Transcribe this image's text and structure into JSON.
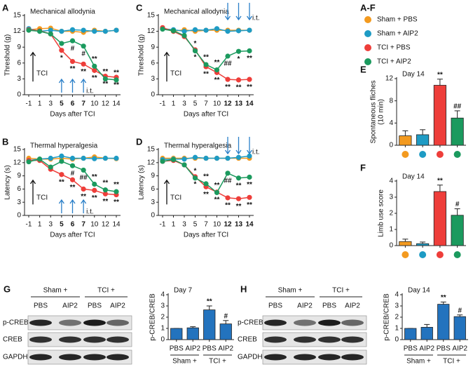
{
  "chart_data": [
    {
      "type": "line",
      "panel": "A",
      "title": "Mechanical allodynia",
      "xlabel": "Days after TCI",
      "ylabel": "Threshold (g)",
      "annotation": "TCI",
      "categories": [
        "-1",
        "1",
        "3",
        "5",
        "6",
        "7",
        "10",
        "12",
        "14"
      ],
      "injection": {
        "label": "i.t.",
        "indices": [
          3,
          4,
          5
        ],
        "direction": "up",
        "color": "#2a7fc8"
      },
      "ylim": [
        0,
        15
      ],
      "yticks": [
        0,
        3,
        6,
        9,
        12,
        15
      ],
      "series": [
        {
          "name": "Sham + PBS",
          "color": "#f39a1f",
          "values": [
            12.3,
            12.5,
            12.6,
            12,
            12,
            11.8,
            12.2,
            12,
            12.2
          ]
        },
        {
          "name": "Sham + AIP2",
          "color": "#1e9bc4",
          "values": [
            12.5,
            12,
            12.2,
            12,
            12.3,
            12.2,
            12,
            12,
            12.2
          ]
        },
        {
          "name": "TCI + PBS",
          "color": "#ee3e3a",
          "values": [
            12.3,
            12.1,
            11.5,
            8.4,
            6.3,
            5.8,
            4.6,
            3.5,
            3.3
          ],
          "sig": [
            null,
            null,
            null,
            "*",
            "**",
            "**",
            "**",
            "**",
            "**"
          ]
        },
        {
          "name": "TCI + AIP2",
          "color": "#1b9a5e",
          "values": [
            12.2,
            12,
            11.5,
            9.7,
            10.2,
            9.2,
            5.4,
            3,
            2.8
          ],
          "sig": [
            null,
            null,
            null,
            null,
            "#",
            "#",
            "**",
            "**",
            "**"
          ]
        }
      ]
    },
    {
      "type": "line",
      "panel": "B",
      "title": "Thermal hyperalgesia",
      "xlabel": "Days after TCI",
      "ylabel": "Latency (s)",
      "annotation": "TCI",
      "categories": [
        "-1",
        "1",
        "3",
        "5",
        "6",
        "7",
        "10",
        "12",
        "14"
      ],
      "injection": {
        "label": "i.t.",
        "indices": [
          3,
          4,
          5
        ],
        "direction": "up",
        "color": "#2a7fc8"
      },
      "ylim": [
        0,
        15
      ],
      "yticks": [
        0,
        3,
        6,
        9,
        12,
        15
      ],
      "series": [
        {
          "name": "Sham + PBS",
          "color": "#f39a1f",
          "values": [
            13,
            12.8,
            12.8,
            13,
            12.8,
            13,
            13.3,
            13,
            12.9
          ]
        },
        {
          "name": "Sham + AIP2",
          "color": "#1e9bc4",
          "values": [
            12.5,
            12.8,
            13,
            13.5,
            13,
            13,
            12.9,
            13,
            13
          ]
        },
        {
          "name": "TCI + PBS",
          "color": "#ee3e3a",
          "values": [
            12.5,
            12.5,
            10.5,
            9.3,
            8.1,
            6,
            5.7,
            4.9,
            4.7
          ],
          "sig": [
            null,
            null,
            null,
            "**",
            "**",
            "**",
            "**",
            "**",
            "**"
          ]
        },
        {
          "name": "TCI + AIP2",
          "color": "#1b9a5e",
          "values": [
            12.2,
            12.8,
            11,
            12.3,
            11.3,
            10.3,
            7.1,
            5.8,
            5.4
          ],
          "sig": [
            null,
            null,
            null,
            null,
            "#",
            "##",
            "**",
            "**",
            "**"
          ]
        }
      ]
    },
    {
      "type": "line",
      "panel": "C",
      "title": "Mechanical allodynia",
      "xlabel": "Days after TCI",
      "ylabel": "Threshold (g)",
      "annotation": "TCI",
      "categories": [
        "-1",
        "1",
        "3",
        "5",
        "7",
        "10",
        "12",
        "13",
        "14"
      ],
      "injection": {
        "label": "i.t.",
        "indices": [
          6,
          7,
          8
        ],
        "direction": "down",
        "color": "#2a7fc8"
      },
      "ylim": [
        0,
        15
      ],
      "yticks": [
        0,
        3,
        6,
        9,
        12,
        15
      ],
      "series": [
        {
          "name": "Sham + PBS",
          "color": "#f39a1f",
          "values": [
            12.5,
            12,
            12.3,
            12,
            12.2,
            12.2,
            12.2,
            12.2,
            12.2
          ]
        },
        {
          "name": "Sham + AIP2",
          "color": "#1e9bc4",
          "values": [
            12.5,
            12.3,
            12,
            12.3,
            12.2,
            12.5,
            12,
            12.1,
            12.2
          ]
        },
        {
          "name": "TCI + PBS",
          "color": "#ee3e3a",
          "values": [
            12.7,
            12,
            11,
            8.5,
            5.3,
            4.2,
            2.9,
            2.8,
            2.9
          ],
          "sig": [
            null,
            null,
            null,
            "*",
            "**",
            "**",
            "**",
            "**",
            "**"
          ]
        },
        {
          "name": "TCI + AIP2",
          "color": "#1b9a5e",
          "values": [
            12.4,
            12.1,
            11.2,
            8.3,
            5.7,
            4.7,
            7.3,
            8.2,
            8.3
          ],
          "sig": [
            null,
            null,
            null,
            "*",
            "**",
            "**",
            "##",
            "*",
            "**"
          ]
        }
      ]
    },
    {
      "type": "line",
      "panel": "D",
      "title": "Thermal hyperalgesia",
      "xlabel": "Days after TCI",
      "ylabel": "Latency (s)",
      "annotation": "TCI",
      "categories": [
        "-1",
        "1",
        "3",
        "5",
        "7",
        "10",
        "12",
        "13",
        "14"
      ],
      "injection": {
        "label": "i.t.",
        "indices": [
          6,
          7,
          8
        ],
        "direction": "down",
        "color": "#2a7fc8"
      },
      "ylim": [
        0,
        15
      ],
      "yticks": [
        0,
        3,
        6,
        9,
        12,
        15
      ],
      "series": [
        {
          "name": "Sham + PBS",
          "color": "#f39a1f",
          "values": [
            13,
            13,
            13,
            13,
            13,
            13,
            13,
            13,
            13
          ]
        },
        {
          "name": "Sham + AIP2",
          "color": "#1e9bc4",
          "values": [
            12.7,
            12.8,
            12.8,
            13.2,
            13,
            13,
            13,
            13.2,
            13.5
          ]
        },
        {
          "name": "TCI + PBS",
          "color": "#ee3e3a",
          "values": [
            12.3,
            12.5,
            11.5,
            8.8,
            6.5,
            5.3,
            4,
            3.8,
            4.1
          ],
          "sig": [
            null,
            null,
            null,
            "*",
            "**",
            "**",
            "**",
            "**",
            "**"
          ]
        },
        {
          "name": "TCI + AIP2",
          "color": "#1b9a5e",
          "values": [
            12.3,
            12.7,
            11.5,
            8.5,
            7.2,
            5.2,
            9.6,
            8.5,
            8.7
          ],
          "sig": [
            null,
            null,
            null,
            "*",
            "**",
            "**",
            "##",
            "**",
            "**"
          ]
        }
      ]
    },
    {
      "type": "bar",
      "panel": "E",
      "title": "Day 14",
      "ylabel": [
        "Spontaneous fliches",
        "(10 min)"
      ],
      "categories": [
        null,
        null,
        null,
        null
      ],
      "values": [
        1.7,
        1.9,
        10.8,
        4.9
      ],
      "errors": [
        0.9,
        0.9,
        1.1,
        1.3
      ],
      "sig": [
        null,
        null,
        "**",
        "##"
      ],
      "colors": [
        "#f39a1f",
        "#1e9bc4",
        "#ee3e3a",
        "#1b9a5e"
      ],
      "dots": true,
      "ylim": [
        0,
        12
      ],
      "yticks": [
        0,
        4,
        8,
        12
      ]
    },
    {
      "type": "bar",
      "panel": "F",
      "title": "Day 14",
      "ylabel": [
        "Limb use score"
      ],
      "categories": [
        null,
        null,
        null,
        null
      ],
      "values": [
        0.25,
        0.12,
        3.35,
        1.88
      ],
      "errors": [
        0.15,
        0.1,
        0.4,
        0.4
      ],
      "sig": [
        null,
        null,
        "**",
        "#"
      ],
      "colors": [
        "#f39a1f",
        "#1e9bc4",
        "#ee3e3a",
        "#1b9a5e"
      ],
      "dots": true,
      "ylim": [
        0,
        4
      ],
      "yticks": [
        0,
        1,
        2,
        3,
        4
      ]
    },
    {
      "type": "bar",
      "panel": "G",
      "title": "Day 7",
      "ylabel": [
        "p-CREB/CREB"
      ],
      "categories": [
        "PBS",
        "AIP2",
        "PBS",
        "AIP2"
      ],
      "groups": [
        "Sham +",
        "TCI +"
      ],
      "values": [
        1,
        1.05,
        2.65,
        1.4
      ],
      "errors": [
        0,
        0.1,
        0.35,
        0.3
      ],
      "sig": [
        null,
        null,
        "**",
        "#"
      ],
      "colors": [
        "#2373be",
        "#2373be",
        "#2373be",
        "#2373be"
      ],
      "ylim": [
        0,
        4
      ],
      "yticks": [
        0,
        1,
        2,
        3,
        4
      ]
    },
    {
      "type": "bar",
      "panel": "H",
      "title": "Day 14",
      "ylabel": [
        "p-CREB/CREB"
      ],
      "categories": [
        "PBS",
        "AIP2",
        "PBS",
        "AIP2"
      ],
      "groups": [
        "Sham +",
        "TCI +"
      ],
      "values": [
        1,
        1.1,
        3.15,
        2.05
      ],
      "errors": [
        0,
        0.25,
        0.2,
        0.15
      ],
      "sig": [
        null,
        null,
        "**",
        "#"
      ],
      "colors": [
        "#2373be",
        "#2373be",
        "#2373be",
        "#2373be"
      ],
      "ylim": [
        0,
        4
      ],
      "yticks": [
        0,
        1,
        2,
        3,
        4
      ]
    }
  ],
  "legend": {
    "title": "A-F"
  },
  "blots": [
    {
      "groups": [
        "Sham +",
        "TCI +"
      ],
      "lanes": [
        "PBS",
        "AIP2",
        "PBS",
        "AIP2"
      ],
      "rows": [
        "p-CREB",
        "CREB",
        "GAPDH"
      ]
    },
    {
      "groups": [
        "Sham +",
        "TCI +"
      ],
      "lanes": [
        "PBS",
        "AIP2",
        "PBS",
        "AIP2"
      ],
      "rows": [
        "p-CREB",
        "CREB",
        "GAPDH"
      ]
    }
  ]
}
